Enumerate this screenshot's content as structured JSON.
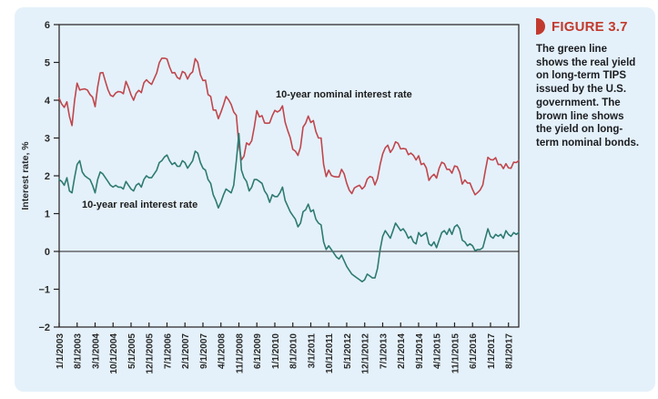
{
  "figure": {
    "label": "FIGURE 3.7",
    "caption": "The green line shows the real yield on long-term TIPS issued by the U.S. government. The brown line shows the yield on long-term nominal bonds."
  },
  "colors": {
    "panel_background": "#e4f1fa",
    "axis": "#231f20",
    "tick_text": "#2a2a2a",
    "heading_red": "#c23a2e",
    "nominal_line": "#c0464d",
    "real_line": "#2e7a72"
  },
  "chart_data": {
    "type": "line",
    "title": "",
    "xlabel": "",
    "ylabel": "Interest rate, %",
    "ylim": [
      -2,
      6
    ],
    "yticks": [
      6,
      5,
      4,
      3,
      2,
      1,
      0,
      -1,
      -2
    ],
    "grid": false,
    "zero_line": true,
    "frequency": "monthly",
    "x_start": "1/1/2003",
    "x_end": "12/1/2017",
    "x_tick_labels": [
      "1/1/2003",
      "8/1/2003",
      "3/1/2004",
      "10/1/2004",
      "5/1/2005",
      "12/1/2005",
      "7/1/2006",
      "2/1/2007",
      "9/1/2007",
      "4/1/2008",
      "11/1/2008",
      "6/1/2009",
      "1/1/2010",
      "8/1/2010",
      "3/1/2011",
      "10/1/2011",
      "5/1/2012",
      "12/1/2012",
      "7/1/2013",
      "2/1/2014",
      "9/1/2014",
      "4/1/2015",
      "11/1/2015",
      "6/1/2016",
      "1/1/2017",
      "8/1/2017"
    ],
    "x_tick_interval_months": 7,
    "annotations": [
      {
        "text": "10-year nominal interest rate"
      },
      {
        "text": "10-year real interest rate"
      }
    ],
    "series": [
      {
        "name": "10-year nominal interest rate",
        "color": "#c0464d",
        "values": [
          4.05,
          3.9,
          3.81,
          3.96,
          3.57,
          3.33,
          3.98,
          4.45,
          4.27,
          4.29,
          4.3,
          4.27,
          4.15,
          4.08,
          3.83,
          4.35,
          4.72,
          4.73,
          4.5,
          4.28,
          4.13,
          4.1,
          4.19,
          4.23,
          4.22,
          4.17,
          4.5,
          4.34,
          4.14,
          4.0,
          4.18,
          4.26,
          4.2,
          4.46,
          4.54,
          4.47,
          4.42,
          4.57,
          4.72,
          4.99,
          5.11,
          5.11,
          5.09,
          4.88,
          4.72,
          4.73,
          4.6,
          4.56,
          4.76,
          4.72,
          4.56,
          4.69,
          4.75,
          5.1,
          5.0,
          4.67,
          4.52,
          4.53,
          4.15,
          4.1,
          3.74,
          3.74,
          3.51,
          3.68,
          3.88,
          4.1,
          4.01,
          3.89,
          3.69,
          3.6,
          2.8,
          2.42,
          2.52,
          2.87,
          2.82,
          2.93,
          3.29,
          3.72,
          3.56,
          3.59,
          3.4,
          3.39,
          3.4,
          3.59,
          3.73,
          3.69,
          3.73,
          3.85,
          3.42,
          3.2,
          3.01,
          2.7,
          2.65,
          2.54,
          2.76,
          3.29,
          3.39,
          3.58,
          3.41,
          3.46,
          3.17,
          3.0,
          3.0,
          2.3,
          1.98,
          2.15,
          2.01,
          1.98,
          1.97,
          1.97,
          2.17,
          2.05,
          1.8,
          1.62,
          1.53,
          1.68,
          1.72,
          1.75,
          1.65,
          1.72,
          1.91,
          1.98,
          1.96,
          1.76,
          1.93,
          2.3,
          2.58,
          2.74,
          2.81,
          2.62,
          2.72,
          2.9,
          2.86,
          2.71,
          2.72,
          2.71,
          2.56,
          2.6,
          2.54,
          2.42,
          2.53,
          2.3,
          2.33,
          2.21,
          1.88,
          1.98,
          2.04,
          1.94,
          2.2,
          2.36,
          2.32,
          2.17,
          2.17,
          2.07,
          2.26,
          2.24,
          2.09,
          1.78,
          1.89,
          1.81,
          1.81,
          1.64,
          1.5,
          1.56,
          1.63,
          1.76,
          2.14,
          2.49,
          2.43,
          2.42,
          2.48,
          2.3,
          2.3,
          2.19,
          2.32,
          2.21,
          2.2,
          2.36,
          2.35,
          2.4
        ]
      },
      {
        "name": "10-year real interest rate",
        "color": "#2e7a72",
        "values": [
          1.9,
          1.85,
          1.75,
          1.95,
          1.6,
          1.55,
          1.95,
          2.3,
          2.4,
          2.1,
          2.0,
          1.95,
          1.9,
          1.75,
          1.55,
          1.9,
          2.1,
          2.05,
          1.95,
          1.85,
          1.75,
          1.7,
          1.75,
          1.7,
          1.7,
          1.65,
          1.85,
          1.75,
          1.65,
          1.6,
          1.75,
          1.8,
          1.7,
          1.9,
          2.0,
          1.95,
          1.95,
          2.05,
          2.15,
          2.35,
          2.4,
          2.5,
          2.55,
          2.4,
          2.3,
          2.35,
          2.25,
          2.25,
          2.4,
          2.35,
          2.2,
          2.3,
          2.4,
          2.65,
          2.6,
          2.35,
          2.2,
          2.15,
          1.9,
          1.8,
          1.5,
          1.35,
          1.15,
          1.3,
          1.5,
          1.65,
          1.6,
          1.55,
          1.75,
          2.4,
          3.12,
          2.15,
          1.95,
          1.85,
          1.6,
          1.7,
          1.9,
          1.9,
          1.85,
          1.8,
          1.6,
          1.5,
          1.3,
          1.5,
          1.45,
          1.45,
          1.55,
          1.7,
          1.35,
          1.2,
          1.05,
          0.95,
          0.85,
          0.65,
          0.75,
          1.05,
          1.1,
          1.25,
          1.05,
          1.1,
          0.85,
          0.75,
          0.7,
          0.25,
          0.05,
          0.15,
          0.05,
          -0.05,
          -0.15,
          -0.2,
          -0.1,
          -0.25,
          -0.4,
          -0.5,
          -0.6,
          -0.65,
          -0.7,
          -0.75,
          -0.8,
          -0.75,
          -0.6,
          -0.65,
          -0.7,
          -0.7,
          -0.45,
          0.05,
          0.4,
          0.55,
          0.45,
          0.35,
          0.55,
          0.75,
          0.65,
          0.55,
          0.6,
          0.5,
          0.35,
          0.4,
          0.25,
          0.2,
          0.5,
          0.4,
          0.45,
          0.5,
          0.2,
          0.15,
          0.25,
          0.1,
          0.3,
          0.5,
          0.55,
          0.45,
          0.6,
          0.45,
          0.65,
          0.7,
          0.6,
          0.3,
          0.25,
          0.15,
          0.2,
          0.15,
          0.02,
          0.05,
          0.05,
          0.1,
          0.35,
          0.6,
          0.4,
          0.35,
          0.45,
          0.4,
          0.45,
          0.35,
          0.55,
          0.45,
          0.4,
          0.5,
          0.45,
          0.5
        ]
      }
    ],
    "legend_position": "inline-annotations"
  }
}
